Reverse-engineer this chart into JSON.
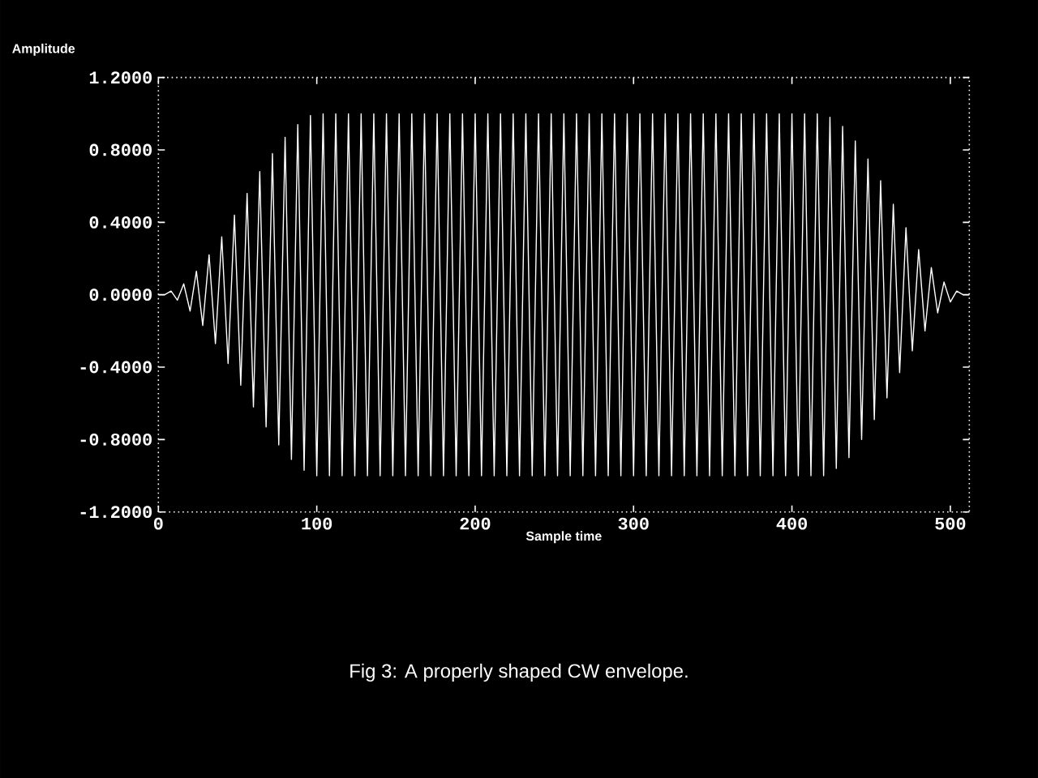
{
  "chart_data": {
    "type": "line",
    "xlabel": "Sample time",
    "ylabel": "Amplitude",
    "annotations": [
      "Fig 3: A properly shaped CW envelope."
    ],
    "xlim": [
      0,
      512
    ],
    "xticks": [
      0,
      100,
      200,
      300,
      400,
      500
    ],
    "ylim": [
      -1.2,
      1.2
    ],
    "yticks": [
      {
        "value": -1.2,
        "label": "-1.2000"
      },
      {
        "value": -0.8,
        "label": "-0.8000"
      },
      {
        "value": -0.4,
        "label": "-0.4000"
      },
      {
        "value": 0,
        "label": "0.0000"
      },
      {
        "value": 0.4,
        "label": "0.4000"
      },
      {
        "value": 0.8,
        "label": "0.8000"
      },
      {
        "value": 1.2,
        "label": "1.2000"
      }
    ],
    "series": [
      {
        "color": "#ffffff",
        "x": [
          0,
          4,
          8,
          12,
          16,
          20,
          24,
          28,
          32,
          36,
          40,
          44,
          48,
          52,
          56,
          60,
          64,
          68,
          72,
          76,
          80,
          84,
          88,
          92,
          96,
          100,
          104,
          108,
          112,
          116,
          120,
          124,
          128,
          132,
          136,
          140,
          144,
          148,
          152,
          156,
          160,
          164,
          168,
          172,
          176,
          180,
          184,
          188,
          192,
          196,
          200,
          204,
          208,
          212,
          216,
          220,
          224,
          228,
          232,
          236,
          240,
          244,
          248,
          252,
          256,
          260,
          264,
          268,
          272,
          276,
          280,
          284,
          288,
          292,
          296,
          300,
          304,
          308,
          312,
          316,
          320,
          324,
          328,
          332,
          336,
          340,
          344,
          348,
          352,
          356,
          360,
          364,
          368,
          372,
          376,
          380,
          384,
          388,
          392,
          396,
          400,
          404,
          408,
          412,
          416,
          420,
          424,
          428,
          432,
          436,
          440,
          444,
          448,
          452,
          456,
          460,
          464,
          468,
          472,
          476,
          480,
          484,
          488,
          492,
          496,
          500,
          504,
          508,
          512
        ],
        "values": [
          0,
          0,
          0.02,
          -0.03,
          0.06,
          -0.09,
          0.13,
          -0.17,
          0.22,
          -0.27,
          0.32,
          -0.38,
          0.44,
          -0.5,
          0.56,
          -0.62,
          0.68,
          -0.73,
          0.78,
          -0.83,
          0.87,
          -0.91,
          0.94,
          -0.97,
          0.99,
          -1,
          1,
          -1,
          1,
          -1,
          1,
          -1,
          1,
          -1,
          1,
          -1,
          1,
          -1,
          1,
          -1,
          1,
          -1,
          1,
          -1,
          1,
          -1,
          1,
          -1,
          1,
          -1,
          1,
          -1,
          1,
          -1,
          1,
          -1,
          1,
          -1,
          1,
          -1,
          1,
          -1,
          1,
          -1,
          1,
          -1,
          1,
          -1,
          1,
          -1,
          1,
          -1,
          1,
          -1,
          1,
          -1,
          1,
          -1,
          1,
          -1,
          1,
          -1,
          1,
          -1,
          1,
          -1,
          1,
          -1,
          1,
          -1,
          1,
          -1,
          1,
          -1,
          1,
          -1,
          1,
          -1,
          1,
          -1,
          1,
          -1,
          1,
          -1,
          1,
          -1,
          0.98,
          -0.96,
          0.93,
          -0.9,
          0.85,
          -0.8,
          0.75,
          -0.69,
          0.63,
          -0.57,
          0.5,
          -0.43,
          0.37,
          -0.31,
          0.25,
          -0.2,
          0.15,
          -0.1,
          0.07,
          -0.04,
          0.02,
          0,
          0
        ]
      }
    ]
  }
}
